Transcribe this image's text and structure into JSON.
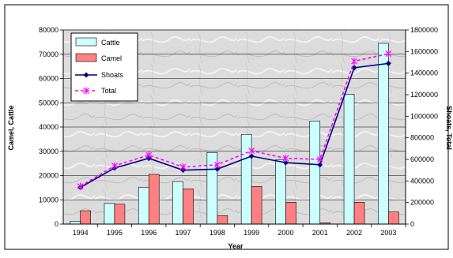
{
  "chart_data": {
    "type": "bar",
    "title": "",
    "xlabel": "Year",
    "ylabel_left": "Camel, Cattle",
    "ylabel_right": "Shoats, Total",
    "categories": [
      "1994",
      "1995",
      "1996",
      "1997",
      "1998",
      "1999",
      "2000",
      "2001",
      "2002",
      "2003"
    ],
    "ylim_left": [
      0,
      80000
    ],
    "yticks_left": [
      "0",
      "10000",
      "20000",
      "30000",
      "40000",
      "50000",
      "60000",
      "70000",
      "80000"
    ],
    "ylim_right": [
      0,
      1800000
    ],
    "yticks_right": [
      "0",
      "200000",
      "400000",
      "600000",
      "800000",
      "1000000",
      "1200000",
      "1400000",
      "1600000",
      "1800000"
    ],
    "grid": true,
    "legend": "top-left",
    "series": [
      {
        "name": "Cattle",
        "kind": "bar",
        "axis": "left",
        "color": "#ccffff",
        "values": [
          1200,
          8500,
          15200,
          17500,
          29500,
          37000,
          26500,
          42500,
          53500,
          74500
        ]
      },
      {
        "name": "Camel",
        "kind": "bar",
        "axis": "left",
        "color": "#ff8080",
        "values": [
          5500,
          8200,
          20500,
          14500,
          3500,
          15500,
          9000,
          500,
          9000,
          5000
        ]
      },
      {
        "name": "Shoats",
        "kind": "line",
        "axis": "right",
        "color": "#000080",
        "values": [
          340000,
          520000,
          610000,
          500000,
          510000,
          630000,
          570000,
          550000,
          1450000,
          1490000
        ]
      },
      {
        "name": "Total",
        "kind": "line",
        "axis": "right",
        "color": "#ff00ff",
        "values": [
          350000,
          540000,
          640000,
          530000,
          550000,
          680000,
          610000,
          600000,
          1510000,
          1580000
        ]
      }
    ]
  }
}
